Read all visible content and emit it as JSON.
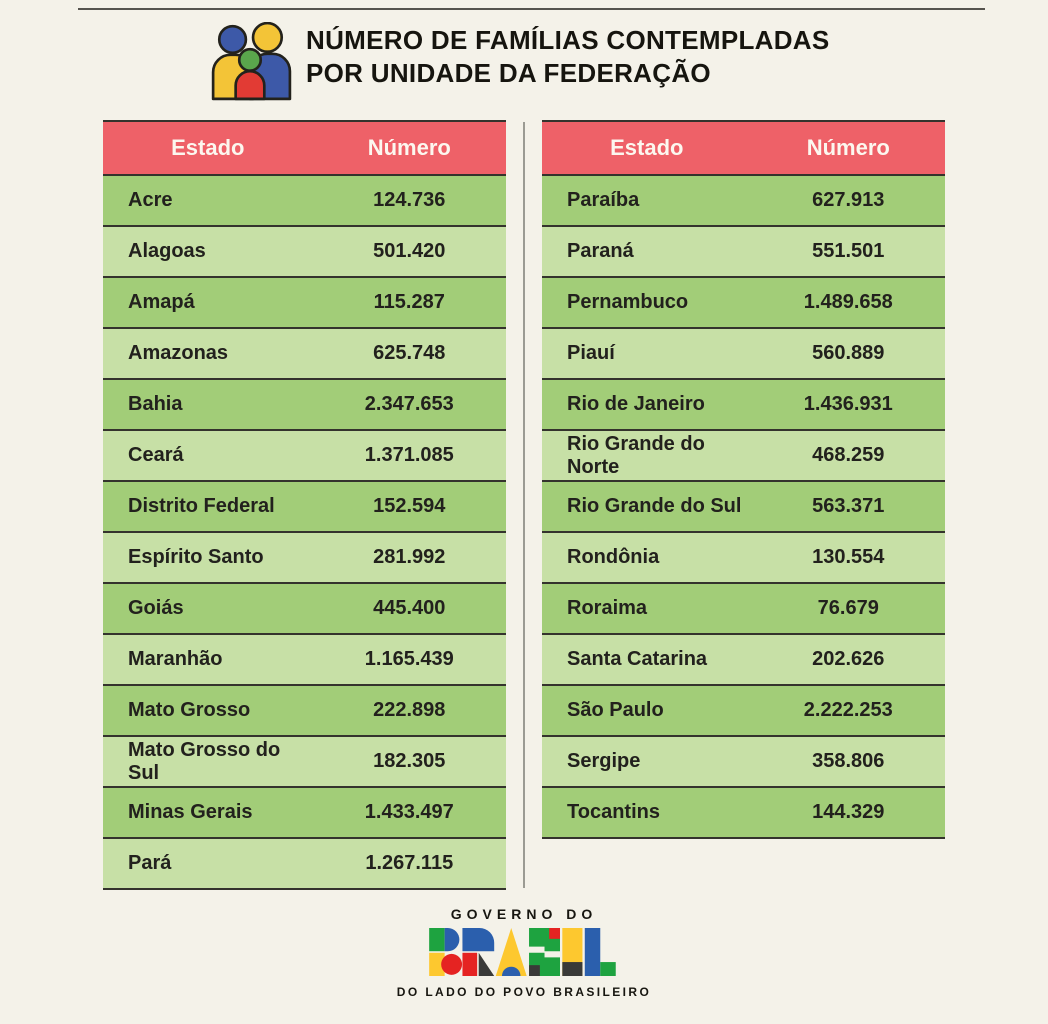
{
  "header": {
    "title_line1": "NÚMERO DE FAMÍLIAS CONTEMPLADAS",
    "title_line2": "POR UNIDADE DA FEDERAÇÃO"
  },
  "columns": {
    "estado": "Estado",
    "numero": "Número"
  },
  "left_rows": [
    {
      "state": "Acre",
      "number": "124.736"
    },
    {
      "state": "Alagoas",
      "number": "501.420"
    },
    {
      "state": "Amapá",
      "number": "115.287"
    },
    {
      "state": "Amazonas",
      "number": "625.748"
    },
    {
      "state": "Bahia",
      "number": "2.347.653"
    },
    {
      "state": "Ceará",
      "number": "1.371.085"
    },
    {
      "state": "Distrito Federal",
      "number": "152.594"
    },
    {
      "state": "Espírito Santo",
      "number": "281.992"
    },
    {
      "state": "Goiás",
      "number": "445.400"
    },
    {
      "state": "Maranhão",
      "number": "1.165.439"
    },
    {
      "state": "Mato Grosso",
      "number": "222.898"
    },
    {
      "state": "Mato Grosso do Sul",
      "number": "182.305"
    },
    {
      "state": "Minas Gerais",
      "number": "1.433.497"
    },
    {
      "state": "Pará",
      "number": "1.267.115"
    }
  ],
  "right_rows": [
    {
      "state": "Paraíba",
      "number": "627.913"
    },
    {
      "state": "Paraná",
      "number": "551.501"
    },
    {
      "state": "Pernambuco",
      "number": "1.489.658"
    },
    {
      "state": "Piauí",
      "number": "560.889"
    },
    {
      "state": "Rio de Janeiro",
      "number": "1.436.931"
    },
    {
      "state": "Rio Grande do Norte",
      "number": "468.259"
    },
    {
      "state": "Rio Grande do Sul",
      "number": "563.371"
    },
    {
      "state": "Rondônia",
      "number": "130.554"
    },
    {
      "state": "Roraima",
      "number": "76.679"
    },
    {
      "state": "Santa Catarina",
      "number": "202.626"
    },
    {
      "state": "São Paulo",
      "number": "2.222.253"
    },
    {
      "state": "Sergipe",
      "number": "358.806"
    },
    {
      "state": "Tocantins",
      "number": "144.329"
    }
  ],
  "footer": {
    "logo_top": "GOVERNO DO",
    "logo_main": "BRASIL",
    "tagline": "DO LADO DO POVO BRASILEIRO"
  },
  "colors": {
    "background": "#f4f2e9",
    "header_red": "#ee6168",
    "row_dark_green": "#a2cd78",
    "row_light_green": "#c7e0a6",
    "row_border": "#34332d",
    "header_text": "#fcf7ef",
    "cell_text": "#22211d",
    "title_text": "#16150f",
    "divider_gray": "#9b9b93"
  },
  "chart_data": {
    "type": "table",
    "title": "NÚMERO DE FAMÍLIAS CONTEMPLADAS POR UNIDADE DA FEDERAÇÃO",
    "columns": [
      "Estado",
      "Número"
    ],
    "rows": [
      [
        "Acre",
        124736
      ],
      [
        "Alagoas",
        501420
      ],
      [
        "Amapá",
        115287
      ],
      [
        "Amazonas",
        625748
      ],
      [
        "Bahia",
        2347653
      ],
      [
        "Ceará",
        1371085
      ],
      [
        "Distrito Federal",
        152594
      ],
      [
        "Espírito Santo",
        281992
      ],
      [
        "Goiás",
        445400
      ],
      [
        "Maranhão",
        1165439
      ],
      [
        "Mato Grosso",
        222898
      ],
      [
        "Mato Grosso do Sul",
        182305
      ],
      [
        "Minas Gerais",
        1433497
      ],
      [
        "Pará",
        1267115
      ],
      [
        "Paraíba",
        627913
      ],
      [
        "Paraná",
        551501
      ],
      [
        "Pernambuco",
        1489658
      ],
      [
        "Piauí",
        560889
      ],
      [
        "Rio de Janeiro",
        1436931
      ],
      [
        "Rio Grande do Norte",
        468259
      ],
      [
        "Rio Grande do Sul",
        563371
      ],
      [
        "Rondônia",
        130554
      ],
      [
        "Roraima",
        76679
      ],
      [
        "Santa Catarina",
        202626
      ],
      [
        "São Paulo",
        2222253
      ],
      [
        "Sergipe",
        358806
      ],
      [
        "Tocantins",
        144329
      ]
    ],
    "layout": "two side-by-side tables, rows alternate dark/light green, red header row"
  }
}
